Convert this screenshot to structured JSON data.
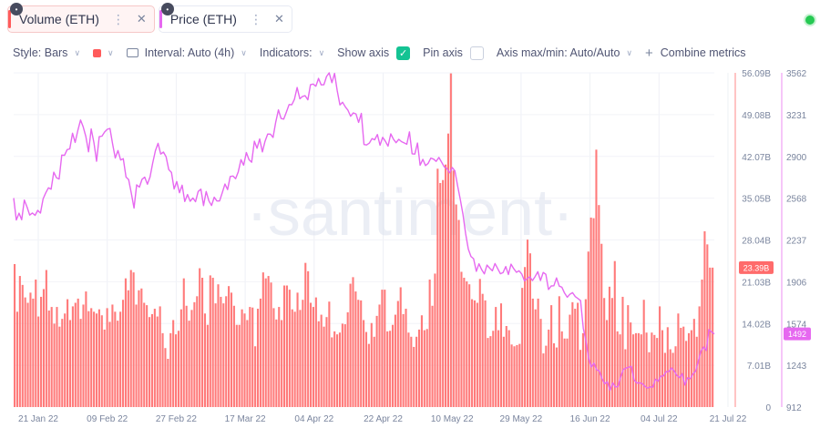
{
  "tabs": [
    {
      "label": "Volume (ETH)",
      "color": "#ff5b5b",
      "active": true
    },
    {
      "label": "Price (ETH)",
      "color": "#e668f0",
      "active": false
    }
  ],
  "icons": {
    "lock": "lock-icon",
    "menu": "more-vertical-icon",
    "close": "close-icon",
    "status": "live-status-dot"
  },
  "toolbar": {
    "style_label": "Style: Bars",
    "color_value": "#ff5b5b",
    "interval_label": "Interval: Auto (4h)",
    "indicators_label": "Indicators:",
    "show_axis_label": "Show axis",
    "show_axis_checked": true,
    "pin_axis_label": "Pin axis",
    "pin_axis_checked": false,
    "axis_minmax_label": "Axis max/min: Auto/Auto",
    "combine_label": "Combine metrics"
  },
  "watermark": "·santiment·",
  "chart_data": {
    "type": "bar+line",
    "x_labels": [
      "21 Jan 22",
      "09 Feb 22",
      "27 Feb 22",
      "17 Mar 22",
      "04 Apr 22",
      "22 Apr 22",
      "10 May 22",
      "29 May 22",
      "16 Jun 22",
      "04 Jul 22",
      "21 Jul 22"
    ],
    "x_domain": [
      "2022-01-21",
      "2022-07-21"
    ],
    "series": [
      {
        "name": "Volume (ETH)",
        "type": "bar",
        "color": "#ff6b6b",
        "axis": "left",
        "ylim": [
          0,
          56.09
        ],
        "y_ticks": [
          "0",
          "7.01B",
          "14.02B",
          "21.03B",
          "28.04B",
          "35.05B",
          "42.07B",
          "49.08B",
          "56.09B"
        ],
        "last_value_label": "23.39B",
        "values_billions": [
          24.0,
          16.0,
          22.0,
          20.5,
          18.4,
          17.5,
          19.2,
          18.2,
          21.4,
          15.2,
          18.5,
          19.8,
          23.0,
          16.2,
          16.8,
          14.0,
          16.8,
          13.5,
          14.8,
          15.7,
          18.1,
          14.6,
          16.9,
          17.5,
          18.2,
          14.8,
          17.2,
          19.4,
          16.1,
          16.6,
          16.0,
          15.7,
          16.4,
          15.4,
          13.0,
          16.6,
          14.3,
          17.2,
          16.0,
          14.5,
          16.0,
          18.0,
          21.6,
          19.6,
          23.0,
          22.6,
          17.2,
          19.6,
          19.9,
          17.5,
          17.1,
          15.1,
          15.6,
          16.5,
          15.2,
          16.9,
          12.4,
          9.9,
          8.1,
          12.4,
          14.6,
          12.2,
          12.8,
          16.4,
          21.6,
          17.0,
          14.5,
          16.3,
          17.6,
          18.6,
          23.3,
          21.7,
          15.7,
          13.8,
          22.1,
          21.7,
          17.4,
          20.6,
          18.5,
          17.4,
          18.6,
          20.3,
          19.2,
          17.0,
          13.8,
          13.8,
          16.4,
          15.7,
          14.6,
          16.8,
          16.7,
          10.2,
          16.5,
          18.2,
          22.6,
          21.6,
          22.0,
          20.9,
          16.6,
          14.7,
          16.8,
          14.6,
          20.4,
          20.4,
          19.7,
          16.4,
          16.0,
          19.2,
          16.3,
          18.0,
          24.2,
          22.8,
          17.5,
          16.8,
          18.4,
          14.4,
          15.5,
          13.5,
          15.1,
          17.7,
          11.7,
          12.7,
          12.2,
          12.5,
          14.0,
          13.9,
          15.9,
          20.7,
          21.8,
          19.4,
          18.0,
          17.9,
          14.6,
          12.6,
          10.6,
          14.1,
          11.8,
          15.3,
          17.2,
          19.7,
          19.7,
          12.7,
          12.8,
          13.8,
          15.5,
          17.8,
          20.1,
          15.6,
          16.5,
          12.5,
          11.8,
          10.1,
          11.8,
          13.0,
          15.4,
          12.9,
          13.1,
          21.4,
          17.0,
          22.4,
          40.0,
          37.6,
          38.1,
          40.7,
          45.9,
          56.0,
          39.7,
          34.0,
          31.4,
          22.7,
          21.7,
          21.1,
          20.6,
          18.1,
          17.9,
          17.5,
          21.5,
          19.0,
          17.9,
          11.6,
          11.9,
          12.8,
          16.8,
          12.9,
          17.4,
          11.8,
          13.6,
          12.9,
          10.5,
          10.2,
          10.4,
          10.6,
          20.0,
          23.5,
          28.1,
          25.8,
          18.2,
          16.4,
          18.2,
          14.8,
          9.0,
          10.3,
          13.0,
          17.1,
          10.7,
          10.0,
          18.6,
          12.7,
          11.5,
          11.5,
          15.5,
          17.6,
          16.5,
          17.5,
          9.6,
          12.4,
          18.1,
          26.1,
          31.8,
          31.7,
          43.2,
          33.9,
          27.4,
          18.3,
          14.6,
          20.2,
          18.3,
          24.5,
          12.7,
          12.2,
          18.5,
          9.7,
          17.1,
          14.2,
          12.2,
          12.4,
          12.4,
          12.2,
          18.0,
          12.5,
          9.2,
          12.5,
          12.1,
          11.6,
          16.9,
          12.9,
          9.1,
          13.4,
          9.7,
          9.1,
          10.2,
          15.7,
          13.3,
          13.5,
          11.1,
          12.4,
          12.9,
          14.8,
          11.8,
          16.9,
          21.4,
          29.5,
          27.3,
          23.4,
          23.4
        ]
      },
      {
        "name": "Price (ETH)",
        "type": "line",
        "color": "#e668f0",
        "axis": "right",
        "ylim": [
          912,
          3562
        ],
        "y_ticks": [
          "912",
          "1243",
          "1574",
          "1906",
          "2237",
          "2568",
          "2900",
          "3231",
          "3562"
        ],
        "last_value_label": "1492",
        "values": [
          2569,
          2395,
          2449,
          2397,
          2553,
          2498,
          2434,
          2451,
          2432,
          2472,
          2450,
          2563,
          2610,
          2651,
          2639,
          2774,
          2730,
          2720,
          2910,
          2908,
          2953,
          2959,
          3083,
          3010,
          3104,
          3188,
          3134,
          3058,
          2936,
          3117,
          3008,
          2861,
          3056,
          3060,
          3093,
          3114,
          3121,
          2998,
          2887,
          2946,
          2871,
          2882,
          2736,
          2716,
          2609,
          2490,
          2674,
          2656,
          2718,
          2735,
          2679,
          2737,
          2847,
          2945,
          3003,
          2918,
          2934,
          2897,
          2795,
          2772,
          2641,
          2700,
          2611,
          2671,
          2542,
          2597,
          2544,
          2570,
          2540,
          2621,
          2640,
          2509,
          2621,
          2546,
          2510,
          2576,
          2546,
          2546,
          2610,
          2680,
          2636,
          2740,
          2744,
          2723,
          2777,
          2874,
          2830,
          2930,
          2873,
          2854,
          3020,
          2964,
          3038,
          2935,
          3020,
          3077,
          3076,
          3050,
          3170,
          3268,
          3200,
          3195,
          3252,
          3311,
          3309,
          3353,
          3446,
          3356,
          3375,
          3381,
          3348,
          3469,
          3473,
          3456,
          3518,
          3467,
          3468,
          3533,
          3562,
          3484,
          3558,
          3421,
          3308,
          3329,
          3293,
          3265,
          3218,
          3244,
          3236,
          3169,
          3241,
          2994,
          2990,
          3005,
          3041,
          3031,
          3073,
          2988,
          3051,
          3019,
          2981,
          3078,
          3036,
          3008,
          3035,
          3017,
          3007,
          2996,
          3094,
          2920,
          2918,
          3005,
          2830,
          2876,
          2827,
          2844,
          2886,
          2878,
          2860,
          2891,
          2855,
          2816,
          2804,
          2769,
          2811,
          2784,
          2669,
          2558,
          2441,
          2290,
          2165,
          2106,
          2088,
          1988,
          2048,
          2002,
          1968,
          2038,
          2013,
          1992,
          2050,
          2009,
          1969,
          1978,
          2026,
          1963,
          2045,
          2009,
          1981,
          1992,
          1967,
          1913,
          1930,
          1945,
          1915,
          1947,
          1985,
          1915,
          1979,
          1965,
          1844,
          1872,
          1874,
          1936,
          1871,
          1862,
          1816,
          1783,
          1807,
          1819,
          1788,
          1773,
          1756,
          1536,
          1437,
          1299,
          1230,
          1260,
          1207,
          1199,
          1139,
          1097,
          1113,
          1045,
          1104,
          1071,
          1075,
          1154,
          1211,
          1221,
          1228,
          1235,
          1127,
          1103,
          1104,
          1099,
          1077,
          1062,
          1072,
          1070,
          1133,
          1116,
          1157,
          1159,
          1193,
          1194,
          1222,
          1197,
          1163,
          1146,
          1177,
          1087,
          1144,
          1137,
          1174,
          1197,
          1275,
          1356,
          1388,
          1361,
          1526,
          1507,
          1492
        ]
      }
    ],
    "grid": {
      "horizontal": true,
      "vertical": true
    }
  }
}
